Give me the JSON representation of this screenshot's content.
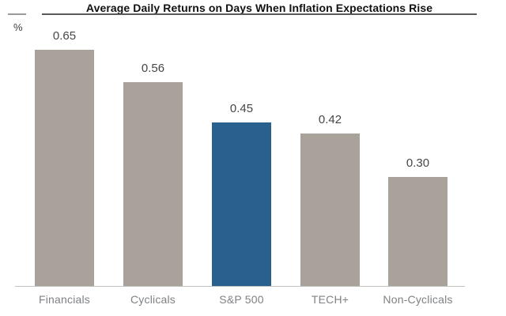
{
  "title": "Average Daily Returns on Days When Inflation Expectations Rise",
  "colors": {
    "title_text": "#111111",
    "title_rule": "#595959",
    "left_rule": "#9b9b9b",
    "bar_default": "#a9a29b",
    "bar_highlight": "#28618d",
    "value_label": "#464646",
    "category_label": "#7f8184",
    "axis_line": "#c2c2c0"
  },
  "chart_data": {
    "type": "bar",
    "title": "Average Daily Returns on Days When Inflation Expectations Rise",
    "ylabel": "%",
    "xlabel": "",
    "categories": [
      "Financials",
      "Cyclicals",
      "S&P 500",
      "TECH+",
      "Non-Cyclicals"
    ],
    "values": [
      0.65,
      0.56,
      0.45,
      0.42,
      0.3
    ],
    "value_labels": [
      "0.65",
      "0.56",
      "0.45",
      "0.42",
      "0.30"
    ],
    "highlight_index": 2,
    "highlight_category": "S&P 500",
    "ylim": [
      0,
      0.7
    ],
    "grid": false,
    "legend": false,
    "annotations": "data labels shown above each bar; S&P 500 bar highlighted in blue"
  }
}
